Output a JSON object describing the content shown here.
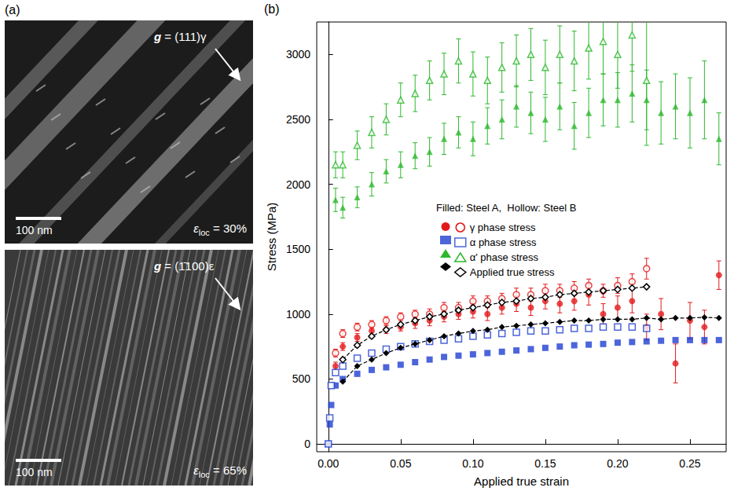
{
  "panel_labels": [
    "(a)",
    "(b)"
  ],
  "images": [
    {
      "g_vector": {
        "symbol": "g",
        "text": " = (111)γ"
      },
      "scale_bar": "100 nm",
      "strain": {
        "symbol": "ε",
        "subscript": "loc",
        "text": " = 30%"
      }
    },
    {
      "g_vector": {
        "symbol": "g",
        "text": " = (1̄100)ε"
      },
      "scale_bar": "100 nm",
      "strain": {
        "symbol": "ε",
        "subscript": "loc",
        "text": " = 65%"
      }
    }
  ],
  "chart_data": {
    "type": "scatter",
    "x_label": "Applied true strain",
    "y_label": "Stress (MPa)",
    "xlim": [
      -0.008,
      0.275
    ],
    "xticks": [
      {
        "value": 0,
        "label": "0.00"
      },
      {
        "value": 0.05,
        "label": "0.05"
      },
      {
        "value": 0.1,
        "label": "0.10"
      },
      {
        "value": 0.15,
        "label": "0.15"
      },
      {
        "value": 0.2,
        "label": "0.20"
      },
      {
        "value": 0.25,
        "label": "0.25"
      }
    ],
    "ylim": [
      -60,
      3250
    ],
    "yticks": [
      0,
      500,
      1000,
      1500,
      2000,
      2500,
      3000
    ],
    "grid": false,
    "legend": "center",
    "legend_title": "Filled: Steel A,  Hollow: Steel B",
    "series": [
      {
        "name": "γ phase stress",
        "type": "scatter",
        "color": "#e31a1c",
        "marker": "circle",
        "x": [
          0.005,
          0.01,
          0.02,
          0.03,
          0.04,
          0.05,
          0.06,
          0.07,
          0.08,
          0.09,
          0.1,
          0.11,
          0.12,
          0.13,
          0.14,
          0.15,
          0.16,
          0.17,
          0.18,
          0.19,
          0.2,
          0.21,
          0.22,
          0.23,
          0.24,
          0.25,
          0.26,
          0.27
        ],
        "values": [
          600,
          750,
          820,
          870,
          880,
          900,
          930,
          950,
          980,
          1000,
          1020,
          1000,
          1050,
          1080,
          1050,
          1100,
          1080,
          1100,
          1150,
          1000,
          1050,
          1100,
          900,
          1000,
          620,
          950,
          900,
          1300
        ],
        "errors": [
          30,
          30,
          30,
          30,
          30,
          30,
          40,
          40,
          40,
          40,
          50,
          50,
          50,
          60,
          60,
          60,
          70,
          70,
          80,
          80,
          90,
          90,
          100,
          120,
          150,
          140,
          130,
          110
        ]
      },
      {
        "name": "γ phase stress",
        "type": "scatter",
        "color": "#e31a1c",
        "marker": "emptyCircle",
        "x": [
          0.005,
          0.01,
          0.02,
          0.03,
          0.04,
          0.05,
          0.06,
          0.07,
          0.08,
          0.09,
          0.1,
          0.11,
          0.12,
          0.13,
          0.14,
          0.15,
          0.16,
          0.17,
          0.18,
          0.19,
          0.2,
          0.21,
          0.22
        ],
        "values": [
          700,
          850,
          900,
          920,
          950,
          980,
          1000,
          1000,
          1050,
          1050,
          1100,
          1100,
          1120,
          1150,
          1150,
          1180,
          1180,
          1200,
          1220,
          1180,
          1220,
          1250,
          1350
        ],
        "errors": [
          30,
          30,
          30,
          30,
          30,
          30,
          30,
          40,
          40,
          40,
          40,
          40,
          40,
          50,
          50,
          50,
          50,
          50,
          50,
          50,
          60,
          60,
          80
        ]
      },
      {
        "name": "α phase stress",
        "type": "scatter",
        "color": "#1f3fd1",
        "marker": "rect",
        "x": [
          0,
          0.001,
          0.002,
          0.005,
          0.01,
          0.02,
          0.03,
          0.04,
          0.05,
          0.06,
          0.07,
          0.08,
          0.09,
          0.1,
          0.11,
          0.12,
          0.13,
          0.14,
          0.15,
          0.16,
          0.17,
          0.18,
          0.19,
          0.2,
          0.21,
          0.22,
          0.23,
          0.24,
          0.25,
          0.26,
          0.27
        ],
        "values": [
          0,
          150,
          300,
          450,
          500,
          540,
          570,
          590,
          610,
          630,
          650,
          670,
          680,
          690,
          700,
          710,
          720,
          730,
          740,
          750,
          760,
          765,
          770,
          780,
          785,
          790,
          795,
          800,
          800,
          800,
          800
        ]
      },
      {
        "name": "α phase stress",
        "type": "scatter",
        "color": "#1f3fd1",
        "marker": "emptyRect",
        "x": [
          0,
          0.001,
          0.002,
          0.005,
          0.01,
          0.02,
          0.03,
          0.04,
          0.05,
          0.06,
          0.07,
          0.08,
          0.09,
          0.1,
          0.11,
          0.12,
          0.13,
          0.14,
          0.15,
          0.16,
          0.17,
          0.18,
          0.19,
          0.2,
          0.21,
          0.22
        ],
        "values": [
          0,
          200,
          450,
          550,
          600,
          660,
          700,
          730,
          750,
          770,
          790,
          800,
          810,
          830,
          840,
          850,
          860,
          870,
          870,
          880,
          890,
          890,
          900,
          900,
          900,
          890
        ]
      },
      {
        "name": "α' phase stress",
        "type": "scatter",
        "color": "#2db82d",
        "marker": "triangle",
        "x": [
          0.005,
          0.01,
          0.02,
          0.03,
          0.04,
          0.05,
          0.06,
          0.07,
          0.08,
          0.09,
          0.1,
          0.11,
          0.12,
          0.13,
          0.14,
          0.15,
          0.16,
          0.17,
          0.18,
          0.19,
          0.2,
          0.21,
          0.22,
          0.23,
          0.24,
          0.25,
          0.26,
          0.27
        ],
        "values": [
          1880,
          1820,
          1900,
          2000,
          2100,
          2150,
          2220,
          2250,
          2350,
          2400,
          2350,
          2450,
          2500,
          2600,
          2550,
          2500,
          2600,
          2450,
          2550,
          2650,
          2650,
          2700,
          2650,
          2550,
          2600,
          2550,
          2650,
          2350
        ],
        "errors": [
          90,
          80,
          80,
          90,
          90,
          100,
          100,
          110,
          120,
          120,
          130,
          140,
          150,
          160,
          160,
          170,
          180,
          180,
          190,
          200,
          210,
          220,
          230,
          240,
          250,
          270,
          300,
          200
        ]
      },
      {
        "name": "α' phase stress",
        "type": "scatter",
        "color": "#2db82d",
        "marker": "emptyTriangle",
        "x": [
          0.005,
          0.01,
          0.02,
          0.03,
          0.04,
          0.05,
          0.06,
          0.07,
          0.08,
          0.09,
          0.1,
          0.11,
          0.12,
          0.13,
          0.14,
          0.15,
          0.16,
          0.17,
          0.18,
          0.19,
          0.2,
          0.21,
          0.22
        ],
        "values": [
          2150,
          2150,
          2300,
          2400,
          2500,
          2650,
          2700,
          2800,
          2850,
          2950,
          2850,
          2800,
          2900,
          2950,
          3000,
          2900,
          3000,
          2950,
          3050,
          3100,
          3000,
          3150,
          2800
        ],
        "errors": [
          100,
          100,
          110,
          120,
          120,
          130,
          140,
          150,
          160,
          170,
          170,
          180,
          190,
          200,
          200,
          210,
          220,
          230,
          240,
          250,
          260,
          280,
          500
        ]
      },
      {
        "name": "Applied true stress",
        "type": "line",
        "line_style": "dashed",
        "color": "#000000",
        "marker": "diamond",
        "x": [
          0.01,
          0.02,
          0.03,
          0.04,
          0.05,
          0.06,
          0.07,
          0.08,
          0.09,
          0.1,
          0.11,
          0.12,
          0.13,
          0.14,
          0.15,
          0.16,
          0.17,
          0.18,
          0.19,
          0.2,
          0.21,
          0.22,
          0.23,
          0.24,
          0.25,
          0.26,
          0.27
        ],
        "values": [
          480,
          600,
          650,
          700,
          740,
          770,
          800,
          830,
          850,
          870,
          880,
          900,
          910,
          920,
          930,
          940,
          950,
          950,
          960,
          960,
          960,
          970,
          960,
          970,
          970,
          975,
          970
        ]
      },
      {
        "name": "Applied true stress",
        "type": "line",
        "line_style": "dashed",
        "color": "#000000",
        "marker": "emptyDiamond",
        "x": [
          0.01,
          0.02,
          0.03,
          0.04,
          0.05,
          0.06,
          0.07,
          0.08,
          0.09,
          0.1,
          0.11,
          0.12,
          0.13,
          0.14,
          0.15,
          0.16,
          0.17,
          0.18,
          0.19,
          0.2,
          0.21,
          0.22
        ],
        "values": [
          650,
          760,
          830,
          880,
          920,
          950,
          980,
          1000,
          1030,
          1050,
          1070,
          1090,
          1100,
          1120,
          1130,
          1150,
          1160,
          1170,
          1180,
          1190,
          1200,
          1210
        ]
      }
    ]
  }
}
